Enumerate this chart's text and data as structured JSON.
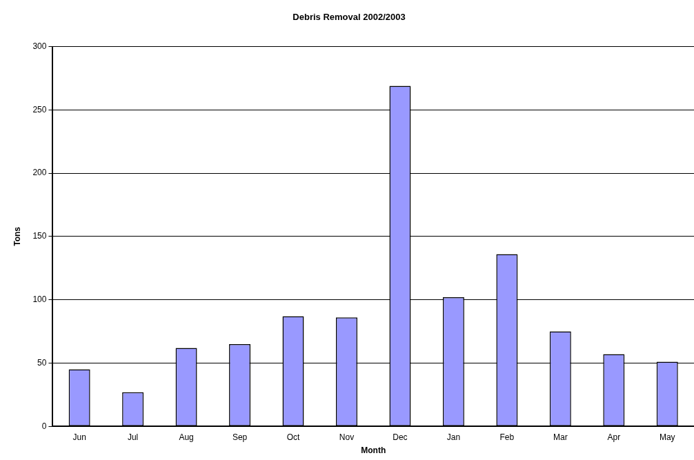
{
  "chart_data": {
    "type": "bar",
    "title": "Debris Removal 2002/2003",
    "xlabel": "Month",
    "ylabel": "Tons",
    "categories": [
      "Jun",
      "Jul",
      "Aug",
      "Sep",
      "Oct",
      "Nov",
      "Dec",
      "Jan",
      "Feb",
      "Mar",
      "Apr",
      "May"
    ],
    "values": [
      45,
      27,
      62,
      65,
      87,
      86,
      269,
      102,
      136,
      75,
      57,
      51
    ],
    "color": "#9999ff",
    "ylim": [
      0,
      300
    ],
    "yticks": [
      0,
      50,
      100,
      150,
      200,
      250,
      300
    ],
    "grid": "y",
    "legend": false
  }
}
